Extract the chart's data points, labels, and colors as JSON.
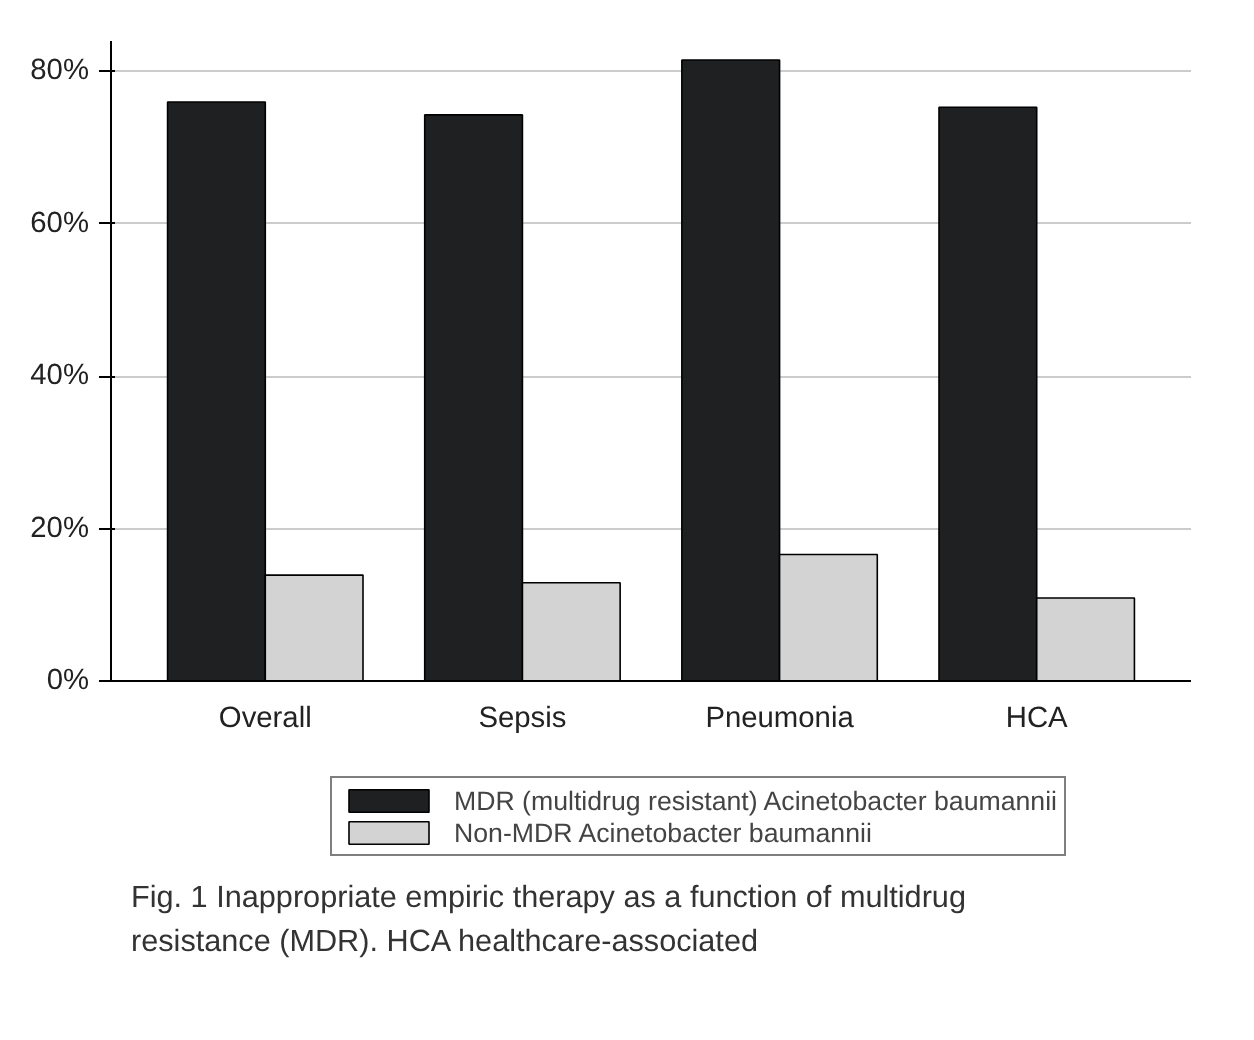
{
  "chart_data": {
    "type": "bar",
    "categories": [
      "Overall",
      "Sepsis",
      "Pneumonia",
      "HCA"
    ],
    "series": [
      {
        "name": "MDR (multidrug resistant) Acinetobacter baumannii",
        "color": "#1f2022",
        "values": [
          76,
          74.3,
          81.5,
          75.3
        ]
      },
      {
        "name": "Non-MDR Acinetobacter baumannii",
        "color": "#d3d3d3",
        "values": [
          13.9,
          12.9,
          16.6,
          10.9
        ]
      }
    ],
    "ylim": [
      0,
      84
    ],
    "yticks": [
      {
        "value": 0,
        "label": "0%"
      },
      {
        "value": 20,
        "label": "20%"
      },
      {
        "value": 40,
        "label": "40%"
      },
      {
        "value": 60,
        "label": "60%"
      },
      {
        "value": 80,
        "label": "80%"
      }
    ],
    "grid": "y",
    "legend": "bottom",
    "annotations": [
      "Fig. 1 Inappropriate empiric therapy as a function of multidrug resistance (MDR). HCA healthcare-associated"
    ]
  }
}
